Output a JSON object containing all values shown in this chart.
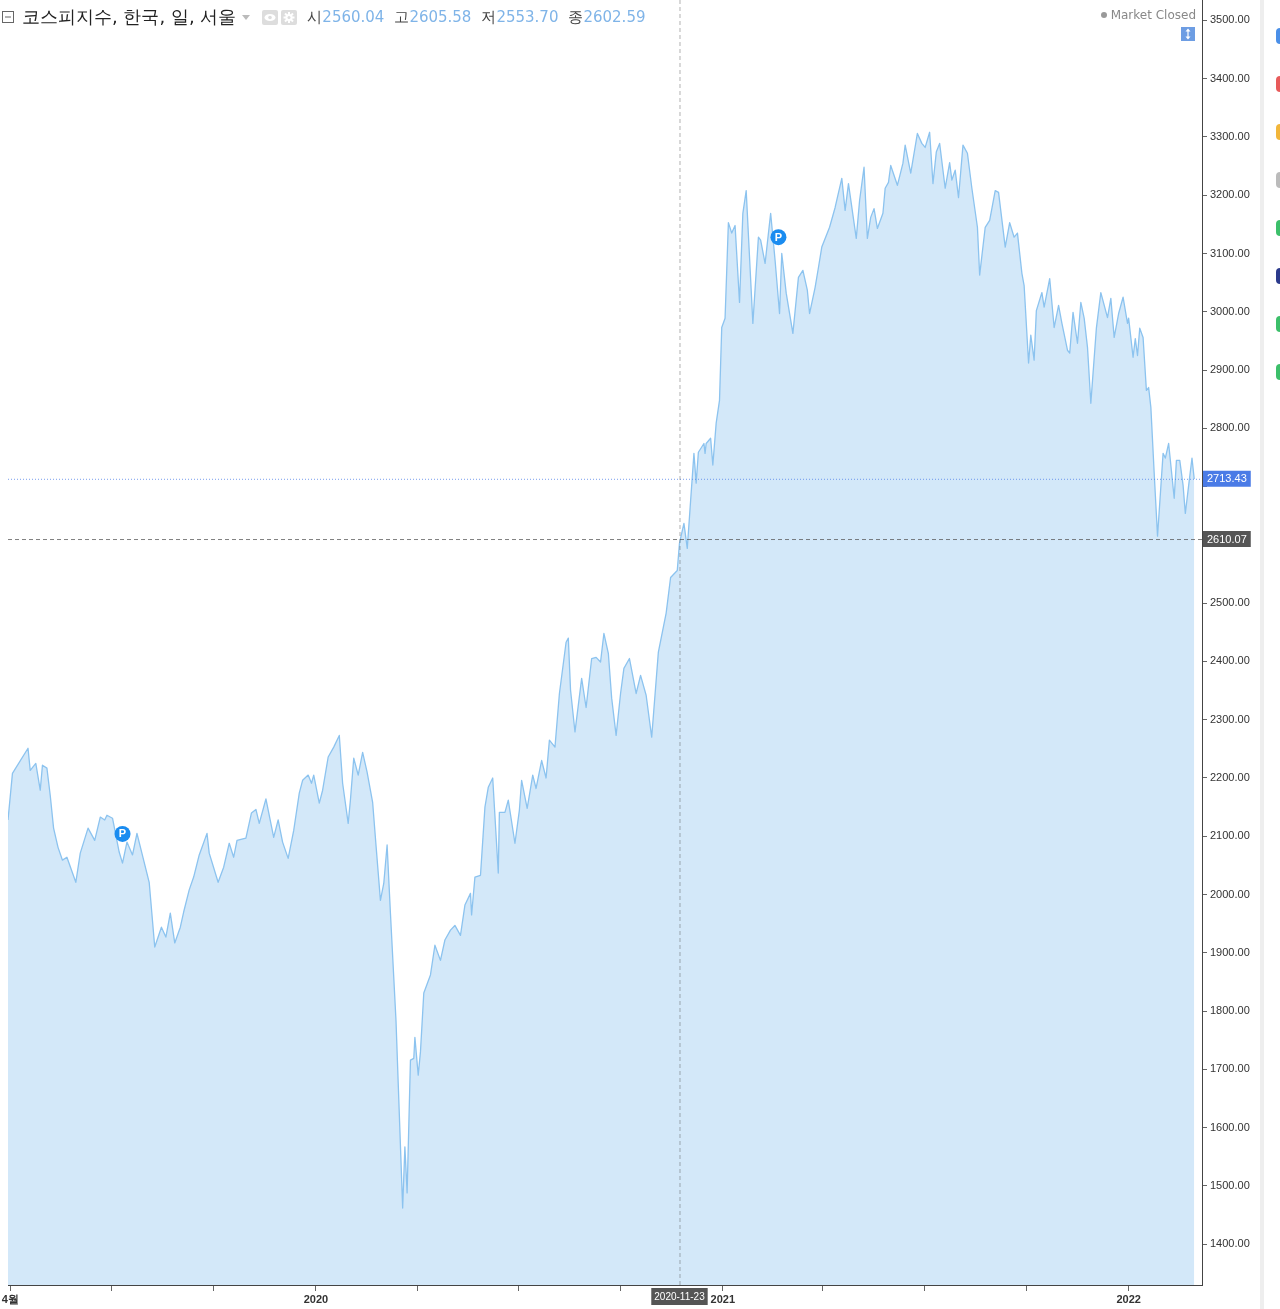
{
  "chart_data": {
    "type": "area",
    "title": "코스피지수, 한국, 일, 서울",
    "annotations": [
      "시2560.04",
      "고2605.58",
      "저2553.70",
      "종2602.59",
      "Market Closed",
      {
        "text": "P",
        "x": "2019-07-11",
        "y": 2104
      },
      {
        "text": "P",
        "x": "2021-02-20",
        "y": 3128
      }
    ],
    "x": [
      "2019-03-30",
      "2019-04-03",
      "2019-04-17",
      "2019-04-19",
      "2019-04-24",
      "2019-04-28",
      "2019-04-30",
      "2019-05-04",
      "2019-05-07",
      "2019-05-10",
      "2019-05-14",
      "2019-05-18",
      "2019-05-22",
      "2019-05-30",
      "2019-06-03",
      "2019-06-10",
      "2019-06-16",
      "2019-06-21",
      "2019-06-25",
      "2019-06-27",
      "2019-07-02",
      "2019-07-08",
      "2019-07-11",
      "2019-07-15",
      "2019-07-20",
      "2019-07-24",
      "2019-07-30",
      "2019-08-04",
      "2019-08-09",
      "2019-08-15",
      "2019-08-19",
      "2019-08-23",
      "2019-08-27",
      "2019-09-01",
      "2019-09-04",
      "2019-09-09",
      "2019-09-13",
      "2019-09-18",
      "2019-09-25",
      "2019-09-27",
      "2019-10-05",
      "2019-10-10",
      "2019-10-15",
      "2019-10-19",
      "2019-10-22",
      "2019-10-30",
      "2019-11-04",
      "2019-11-08",
      "2019-11-11",
      "2019-11-17",
      "2019-11-24",
      "2019-11-28",
      "2019-12-02",
      "2019-12-07",
      "2019-12-12",
      "2019-12-17",
      "2019-12-20",
      "2019-12-25",
      "2019-12-28",
      "2019-12-30",
      "2020-01-04",
      "2020-01-07",
      "2020-01-12",
      "2020-01-17",
      "2020-01-22",
      "2020-01-25",
      "2020-01-30",
      "2020-02-01",
      "2020-02-04",
      "2020-02-08",
      "2020-02-12",
      "2020-02-16",
      "2020-02-21",
      "2020-02-24",
      "2020-02-28",
      "2020-03-02",
      "2020-03-05",
      "2020-03-08",
      "2020-03-13",
      "2020-03-15",
      "2020-03-19",
      "2020-03-21",
      "2020-03-23",
      "2020-03-26",
      "2020-03-29",
      "2020-03-30",
      "2020-04-02",
      "2020-04-04",
      "2020-04-07",
      "2020-04-13",
      "2020-04-17",
      "2020-04-22",
      "2020-04-26",
      "2020-05-01",
      "2020-05-05",
      "2020-05-10",
      "2020-05-14",
      "2020-05-19",
      "2020-05-20",
      "2020-05-23",
      "2020-05-28",
      "2020-06-01",
      "2020-06-04",
      "2020-06-08",
      "2020-06-13",
      "2020-06-14",
      "2020-06-19",
      "2020-06-22",
      "2020-06-28",
      "2020-07-02",
      "2020-07-04",
      "2020-07-09",
      "2020-07-14",
      "2020-07-17",
      "2020-07-22",
      "2020-07-26",
      "2020-07-29",
      "2020-08-03",
      "2020-08-07",
      "2020-08-13",
      "2020-08-15",
      "2020-08-17",
      "2020-08-21",
      "2020-08-27",
      "2020-08-31",
      "2020-09-05",
      "2020-09-09",
      "2020-09-13",
      "2020-09-16",
      "2020-09-20",
      "2020-09-23",
      "2020-09-27",
      "2020-10-01",
      "2020-10-04",
      "2020-10-09",
      "2020-10-15",
      "2020-10-19",
      "2020-10-24",
      "2020-10-29",
      "2020-11-04",
      "2020-11-11",
      "2020-11-15",
      "2020-11-21",
      "2020-11-23",
      "2020-11-27",
      "2020-11-30",
      "2020-12-06",
      "2020-12-08",
      "2020-12-10",
      "2020-12-15",
      "2020-12-16",
      "2020-12-17",
      "2020-12-21",
      "2020-12-23",
      "2020-12-26",
      "2020-12-29",
      "2020-12-31",
      "2021-01-03",
      "2021-01-06",
      "2021-01-09",
      "2021-01-12",
      "2021-01-16",
      "2021-01-19",
      "2021-01-22",
      "2021-01-28",
      "2021-02-02",
      "2021-02-04",
      "2021-02-08",
      "2021-02-13",
      "2021-02-17",
      "2021-02-21",
      "2021-02-23",
      "2021-02-27",
      "2021-03-05",
      "2021-03-10",
      "2021-03-14",
      "2021-03-18",
      "2021-03-20",
      "2021-03-25",
      "2021-03-28",
      "2021-03-31",
      "2021-04-07",
      "2021-04-12",
      "2021-04-14",
      "2021-04-18",
      "2021-04-21",
      "2021-04-24",
      "2021-05-01",
      "2021-05-04",
      "2021-05-08",
      "2021-05-11",
      "2021-05-14",
      "2021-05-17",
      "2021-05-20",
      "2021-05-25",
      "2021-05-27",
      "2021-05-30",
      "2021-06-01",
      "2021-06-07",
      "2021-06-12",
      "2021-06-14",
      "2021-06-19",
      "2021-06-25",
      "2021-06-29",
      "2021-07-02",
      "2021-07-06",
      "2021-07-09",
      "2021-07-12",
      "2021-07-15",
      "2021-07-20",
      "2021-07-24",
      "2021-07-26",
      "2021-07-29",
      "2021-08-01",
      "2021-08-05",
      "2021-08-09",
      "2021-08-13",
      "2021-08-18",
      "2021-08-20",
      "2021-08-25",
      "2021-08-29",
      "2021-09-03",
      "2021-09-06",
      "2021-09-12",
      "2021-09-16",
      "2021-09-20",
      "2021-09-23",
      "2021-09-27",
      "2021-09-29",
      "2021-10-03",
      "2021-10-05",
      "2021-10-08",
      "2021-10-10",
      "2021-10-15",
      "2021-10-17",
      "2021-10-22",
      "2021-10-26",
      "2021-10-30",
      "2021-11-02",
      "2021-11-07",
      "2021-11-09",
      "2021-11-12",
      "2021-11-16",
      "2021-11-19",
      "2021-11-22",
      "2021-11-25",
      "2021-11-28",
      "2021-12-03",
      "2021-12-07",
      "2021-12-13",
      "2021-12-16",
      "2021-12-19",
      "2021-12-23",
      "2021-12-27",
      "2021-12-31",
      "2022-01-01",
      "2022-01-05",
      "2022-01-07",
      "2022-01-09",
      "2022-01-11",
      "2022-01-14",
      "2022-01-17",
      "2022-01-19",
      "2022-01-21",
      "2022-01-24",
      "2022-01-27",
      "2022-02-01",
      "2022-02-03",
      "2022-02-06",
      "2022-02-11",
      "2022-02-13",
      "2022-02-16",
      "2022-02-19",
      "2022-02-21",
      "2022-02-24",
      "2022-02-27",
      "2022-03-01"
    ],
    "series": [
      {
        "color": "#8cc3ef",
        "values": [
          2128,
          2208,
          2251,
          2213,
          2225,
          2179,
          2222,
          2217,
          2170,
          2114,
          2081,
          2059,
          2064,
          2021,
          2071,
          2114,
          2093,
          2133,
          2128,
          2136,
          2131,
          2073,
          2054,
          2090,
          2068,
          2105,
          2059,
          2021,
          1910,
          1944,
          1927,
          1968,
          1917,
          1944,
          1970,
          2008,
          2030,
          2068,
          2105,
          2071,
          2021,
          2047,
          2088,
          2064,
          2093,
          2097,
          2140,
          2146,
          2122,
          2164,
          2098,
          2128,
          2090,
          2062,
          2110,
          2174,
          2196,
          2205,
          2191,
          2205,
          2157,
          2179,
          2236,
          2253,
          2273,
          2191,
          2122,
          2162,
          2234,
          2205,
          2244,
          2210,
          2158,
          2085,
          1990,
          2019,
          2085,
          1968,
          1784,
          1676,
          1462,
          1567,
          1488,
          1716,
          1719,
          1755,
          1690,
          1730,
          1831,
          1862,
          1913,
          1887,
          1922,
          1939,
          1947,
          1930,
          1982,
          2002,
          1965,
          2030,
          2033,
          2150,
          2184,
          2200,
          2037,
          2141,
          2141,
          2162,
          2088,
          2145,
          2196,
          2148,
          2205,
          2182,
          2230,
          2200,
          2265,
          2253,
          2345,
          2433,
          2440,
          2351,
          2279,
          2371,
          2321,
          2405,
          2407,
          2399,
          2448,
          2414,
          2337,
          2273,
          2345,
          2388,
          2405,
          2345,
          2376,
          2342,
          2270,
          2416,
          2483,
          2544,
          2556,
          2603,
          2637,
          2594,
          2757,
          2706,
          2759,
          2774,
          2757,
          2774,
          2783,
          2737,
          2809,
          2848,
          2973,
          2989,
          3153,
          3135,
          3148,
          3016,
          3169,
          3208,
          2980,
          3128,
          3123,
          3083,
          3169,
          3088,
          2997,
          3100,
          3032,
          2963,
          3059,
          3071,
          3037,
          2997,
          3042,
          3076,
          3111,
          3145,
          3179,
          3196,
          3229,
          3174,
          3220,
          3126,
          3191,
          3248,
          3126,
          3162,
          3177,
          3143,
          3169,
          3212,
          3222,
          3251,
          3217,
          3255,
          3286,
          3238,
          3306,
          3289,
          3282,
          3308,
          3220,
          3274,
          3289,
          3212,
          3256,
          3226,
          3243,
          3196,
          3286,
          3272,
          3212,
          3145,
          3063,
          3145,
          3157,
          3208,
          3205,
          3111,
          3153,
          3128,
          3135,
          3066,
          3045,
          2912,
          2960,
          2917,
          3002,
          3033,
          3008,
          3057,
          2973,
          3011,
          2980,
          2934,
          2929,
          2999,
          2946,
          3016,
          2989,
          2939,
          2843,
          2972,
          3033,
          2990,
          3023,
          2956,
          2997,
          3025,
          2980,
          2989,
          2922,
          2954,
          2925,
          2972,
          2956,
          2865,
          2870,
          2836,
          2723,
          2615,
          2757,
          2749,
          2774,
          2680,
          2745,
          2745,
          2702,
          2654,
          2702,
          2749,
          2713
        ]
      }
    ],
    "xlim": [
      "2019-03-30",
      "2022-03-08"
    ],
    "xticks": [
      {
        "value": "2019-04-01",
        "label": "4월"
      },
      {
        "value": "2019-07-01",
        "label": null
      },
      {
        "value": "2019-10-01",
        "label": null
      },
      {
        "value": "2020-01-01",
        "label": "2020"
      },
      {
        "value": "2020-04-01",
        "label": null
      },
      {
        "value": "2020-07-01",
        "label": null
      },
      {
        "value": "2020-10-01",
        "label": null
      },
      {
        "value": "2021-01-01",
        "label": "2021"
      },
      {
        "value": "2021-04-01",
        "label": null
      },
      {
        "value": "2021-07-01",
        "label": null
      },
      {
        "value": "2021-10-01",
        "label": null
      },
      {
        "value": "2022-01-01",
        "label": "2022"
      }
    ],
    "ylim": [
      1330,
      3535
    ],
    "yticks": [
      {
        "value": 1400,
        "label": "1400.00"
      },
      {
        "value": 1500,
        "label": "1500.00"
      },
      {
        "value": 1600,
        "label": "1600.00"
      },
      {
        "value": 1700,
        "label": "1700.00"
      },
      {
        "value": 1800,
        "label": "1800.00"
      },
      {
        "value": 1900,
        "label": "1900.00"
      },
      {
        "value": 2000,
        "label": "2000.00"
      },
      {
        "value": 2100,
        "label": "2100.00"
      },
      {
        "value": 2200,
        "label": "2200.00"
      },
      {
        "value": 2300,
        "label": "2300.00"
      },
      {
        "value": 2400,
        "label": "2400.00"
      },
      {
        "value": 2500,
        "label": "2500.00"
      },
      {
        "value": 2600,
        "label": null
      },
      {
        "value": 2700,
        "label": null
      },
      {
        "value": 2800,
        "label": "2800.00"
      },
      {
        "value": 2900,
        "label": "2900.00"
      },
      {
        "value": 3000,
        "label": "3000.00"
      },
      {
        "value": 3100,
        "label": "3100.00"
      },
      {
        "value": 3200,
        "label": "3200.00"
      },
      {
        "value": 3300,
        "label": "3300.00"
      },
      {
        "value": 3400,
        "label": "3400.00"
      },
      {
        "value": 3500,
        "label": "3500.00"
      }
    ],
    "ref_lines": [
      {
        "axis": "y",
        "value": 2713.43,
        "label": "2713.43",
        "color": "#4a7be6",
        "line_style": "dotted"
      },
      {
        "axis": "y",
        "value": 2610.07,
        "label": "2610.07",
        "color": "#555555",
        "line_style": "dashed"
      },
      {
        "axis": "x",
        "value": "2020-11-23",
        "label": "2020-11-23",
        "color": "#555555",
        "line_style": "dashed"
      }
    ]
  }
}
